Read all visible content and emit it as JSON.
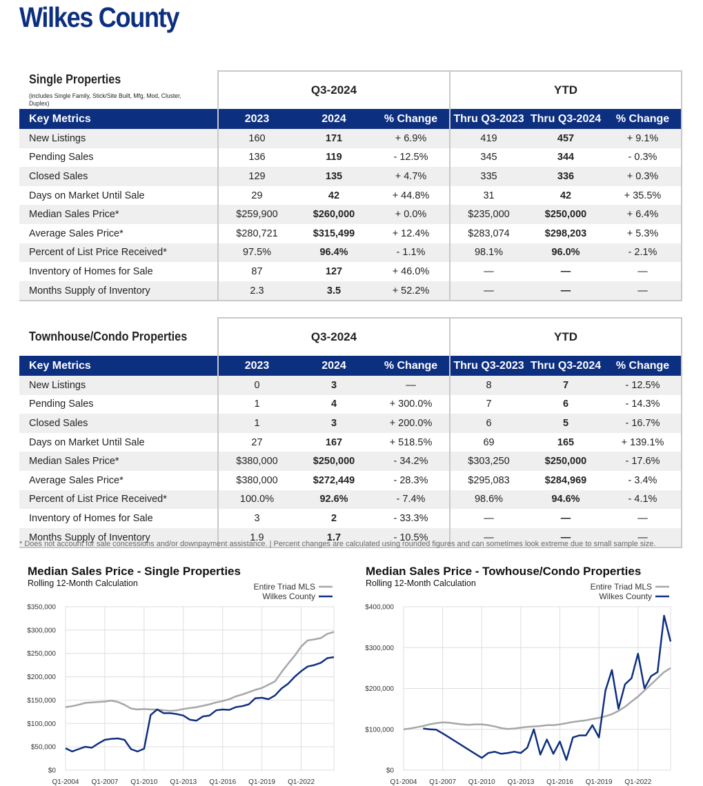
{
  "header": {
    "title": "Wilkes County"
  },
  "tables": [
    {
      "title": "Single Properties",
      "subtitle": "(includes Single Family, Stick/Site Built, Mfg, Mod, Cluster, Duplex)",
      "groups": [
        "Q3-2024",
        "YTD"
      ],
      "columns": [
        "Key Metrics",
        "2023",
        "2024",
        "% Change",
        "Thru Q3-2023",
        "Thru Q3-2024",
        "% Change"
      ],
      "rows": [
        [
          "New Listings",
          "160",
          "171",
          "+ 6.9%",
          "419",
          "457",
          "+ 9.1%"
        ],
        [
          "Pending Sales",
          "136",
          "119",
          "- 12.5%",
          "345",
          "344",
          "- 0.3%"
        ],
        [
          "Closed Sales",
          "129",
          "135",
          "+ 4.7%",
          "335",
          "336",
          "+ 0.3%"
        ],
        [
          "Days on Market Until Sale",
          "29",
          "42",
          "+ 44.8%",
          "31",
          "42",
          "+ 35.5%"
        ],
        [
          "Median Sales Price*",
          "$259,900",
          "$260,000",
          "+ 0.0%",
          "$235,000",
          "$250,000",
          "+ 6.4%"
        ],
        [
          "Average Sales Price*",
          "$280,721",
          "$315,499",
          "+ 12.4%",
          "$283,074",
          "$298,203",
          "+ 5.3%"
        ],
        [
          "Percent of List Price Received*",
          "97.5%",
          "96.4%",
          "- 1.1%",
          "98.1%",
          "96.0%",
          "- 2.1%"
        ],
        [
          "Inventory of Homes for Sale",
          "87",
          "127",
          "+ 46.0%",
          "—",
          "—",
          "—"
        ],
        [
          "Months Supply of Inventory",
          "2.3",
          "3.5",
          "+ 52.2%",
          "—",
          "—",
          "—"
        ]
      ]
    },
    {
      "title": "Townhouse/Condo Properties",
      "groups": [
        "Q3-2024",
        "YTD"
      ],
      "columns": [
        "Key Metrics",
        "2023",
        "2024",
        "% Change",
        "Thru Q3-2023",
        "Thru Q3-2024",
        "% Change"
      ],
      "rows": [
        [
          "New Listings",
          "0",
          "3",
          "—",
          "8",
          "7",
          "- 12.5%"
        ],
        [
          "Pending Sales",
          "1",
          "4",
          "+ 300.0%",
          "7",
          "6",
          "- 14.3%"
        ],
        [
          "Closed Sales",
          "1",
          "3",
          "+ 200.0%",
          "6",
          "5",
          "- 16.7%"
        ],
        [
          "Days on Market Until Sale",
          "27",
          "167",
          "+ 518.5%",
          "69",
          "165",
          "+ 139.1%"
        ],
        [
          "Median Sales Price*",
          "$380,000",
          "$250,000",
          "- 34.2%",
          "$303,250",
          "$250,000",
          "- 17.6%"
        ],
        [
          "Average Sales Price*",
          "$380,000",
          "$272,449",
          "- 28.3%",
          "$295,083",
          "$284,969",
          "- 3.4%"
        ],
        [
          "Percent of List Price Received*",
          "100.0%",
          "92.6%",
          "- 7.4%",
          "98.6%",
          "94.6%",
          "- 4.1%"
        ],
        [
          "Inventory of Homes for Sale",
          "3",
          "2",
          "- 33.3%",
          "—",
          "—",
          "—"
        ],
        [
          "Months Supply of Inventory",
          "1.9",
          "1.7",
          "- 10.5%",
          "—",
          "—",
          "—"
        ]
      ]
    }
  ],
  "footnote": "* Does not account for sale concessions and/or downpayment assistance. | Percent changes are calculated using rounded figures and can sometimes look extreme due to small sample size.",
  "chart_data": [
    {
      "type": "line",
      "title": "Median Sales Price - Single Properties",
      "subtitle": "Rolling 12-Month Calculation",
      "grid": true,
      "legend": "top-right",
      "x": [
        2004,
        2004.5,
        2005,
        2005.5,
        2006,
        2006.5,
        2007,
        2007.5,
        2008,
        2008.5,
        2009,
        2009.5,
        2010,
        2010.5,
        2011,
        2011.5,
        2012,
        2012.5,
        2013,
        2013.5,
        2014,
        2014.5,
        2015,
        2015.5,
        2016,
        2016.5,
        2017,
        2017.5,
        2018,
        2018.5,
        2019,
        2019.5,
        2020,
        2020.5,
        2021,
        2021.5,
        2022,
        2022.5,
        2023,
        2023.5,
        2024,
        2024.5
      ],
      "xlim": [
        2004,
        2024.5
      ],
      "xticks": [
        {
          "value": 2004,
          "label": "Q1-2004"
        },
        {
          "value": 2007,
          "label": "Q1-2007"
        },
        {
          "value": 2010,
          "label": "Q1-2010"
        },
        {
          "value": 2013,
          "label": "Q1-2013"
        },
        {
          "value": 2016,
          "label": "Q1-2016"
        },
        {
          "value": 2019,
          "label": "Q1-2019"
        },
        {
          "value": 2022,
          "label": "Q1-2022"
        }
      ],
      "ylim": [
        0,
        350000
      ],
      "yticks": [
        {
          "value": 0,
          "label": "$0"
        },
        {
          "value": 50000,
          "label": "$50,000"
        },
        {
          "value": 100000,
          "label": "$100,000"
        },
        {
          "value": 150000,
          "label": "$150,000"
        },
        {
          "value": 200000,
          "label": "$200,000"
        },
        {
          "value": 250000,
          "label": "$250,000"
        },
        {
          "value": 300000,
          "label": "$300,000"
        },
        {
          "value": 350000,
          "label": "$350,000"
        }
      ],
      "series": [
        {
          "name": "Entire Triad MLS",
          "color": "#a6a6a6",
          "values": [
            135000,
            137000,
            140000,
            144000,
            145000,
            146000,
            147000,
            149000,
            146000,
            140000,
            132000,
            130000,
            131000,
            130000,
            130000,
            128000,
            127000,
            128000,
            131000,
            133000,
            135000,
            138000,
            141000,
            145000,
            148000,
            152000,
            158000,
            162000,
            167000,
            172000,
            176000,
            183000,
            190000,
            210000,
            228000,
            245000,
            265000,
            278000,
            280000,
            283000,
            292000,
            296000
          ]
        },
        {
          "name": "Wilkes County",
          "color": "#0d2f80",
          "values": [
            47000,
            40000,
            45000,
            50000,
            48000,
            57000,
            65000,
            67000,
            68000,
            65000,
            45000,
            40000,
            46000,
            118000,
            130000,
            122000,
            122000,
            120000,
            117000,
            108000,
            106000,
            115000,
            117000,
            128000,
            130000,
            129000,
            135000,
            137000,
            141000,
            154000,
            155000,
            152000,
            160000,
            175000,
            185000,
            200000,
            212000,
            222000,
            225000,
            230000,
            240000,
            242000
          ]
        }
      ]
    },
    {
      "type": "line",
      "title": "Median Sales Price - Towhouse/Condo Properties",
      "subtitle": "Rolling 12-Month Calculation",
      "grid": true,
      "legend": "top-right",
      "x": [
        2004,
        2004.5,
        2005,
        2005.5,
        2006,
        2006.5,
        2007,
        2007.5,
        2008,
        2008.5,
        2009,
        2009.5,
        2010,
        2010.5,
        2011,
        2011.5,
        2012,
        2012.5,
        2013,
        2013.5,
        2014,
        2014.5,
        2015,
        2015.5,
        2016,
        2016.5,
        2017,
        2017.5,
        2018,
        2018.5,
        2019,
        2019.5,
        2020,
        2020.5,
        2021,
        2021.5,
        2022,
        2022.5,
        2023,
        2023.5,
        2024,
        2024.5
      ],
      "xlim": [
        2004,
        2024.5
      ],
      "xticks": [
        {
          "value": 2004,
          "label": "Q1-2004"
        },
        {
          "value": 2007,
          "label": "Q1-2007"
        },
        {
          "value": 2010,
          "label": "Q1-2010"
        },
        {
          "value": 2013,
          "label": "Q1-2013"
        },
        {
          "value": 2016,
          "label": "Q1-2016"
        },
        {
          "value": 2019,
          "label": "Q1-2019"
        },
        {
          "value": 2022,
          "label": "Q1-2022"
        }
      ],
      "ylim": [
        0,
        400000
      ],
      "yticks": [
        {
          "value": 0,
          "label": "$0"
        },
        {
          "value": 100000,
          "label": "$100,000"
        },
        {
          "value": 200000,
          "label": "$200,000"
        },
        {
          "value": 300000,
          "label": "$300,000"
        },
        {
          "value": 400000,
          "label": "$400,000"
        }
      ],
      "series": [
        {
          "name": "Entire Triad MLS",
          "color": "#a6a6a6",
          "values": [
            100000,
            102000,
            105000,
            108000,
            112000,
            115000,
            117000,
            116000,
            114000,
            112000,
            111000,
            112000,
            112000,
            110000,
            107000,
            103000,
            101000,
            102000,
            104000,
            106000,
            107000,
            108000,
            110000,
            110000,
            112000,
            115000,
            118000,
            120000,
            122000,
            125000,
            128000,
            132000,
            137000,
            145000,
            155000,
            168000,
            180000,
            195000,
            210000,
            225000,
            240000,
            250000
          ]
        },
        {
          "name": "Wilkes County",
          "color": "#0d2f80",
          "values": [
            null,
            null,
            null,
            102000,
            100000,
            99000,
            90000,
            80000,
            70000,
            60000,
            50000,
            40000,
            30000,
            42000,
            45000,
            40000,
            42000,
            45000,
            42000,
            55000,
            100000,
            38000,
            75000,
            40000,
            70000,
            25000,
            80000,
            85000,
            85000,
            110000,
            80000,
            195000,
            245000,
            150000,
            210000,
            225000,
            285000,
            200000,
            230000,
            240000,
            378000,
            315000
          ]
        }
      ]
    }
  ]
}
